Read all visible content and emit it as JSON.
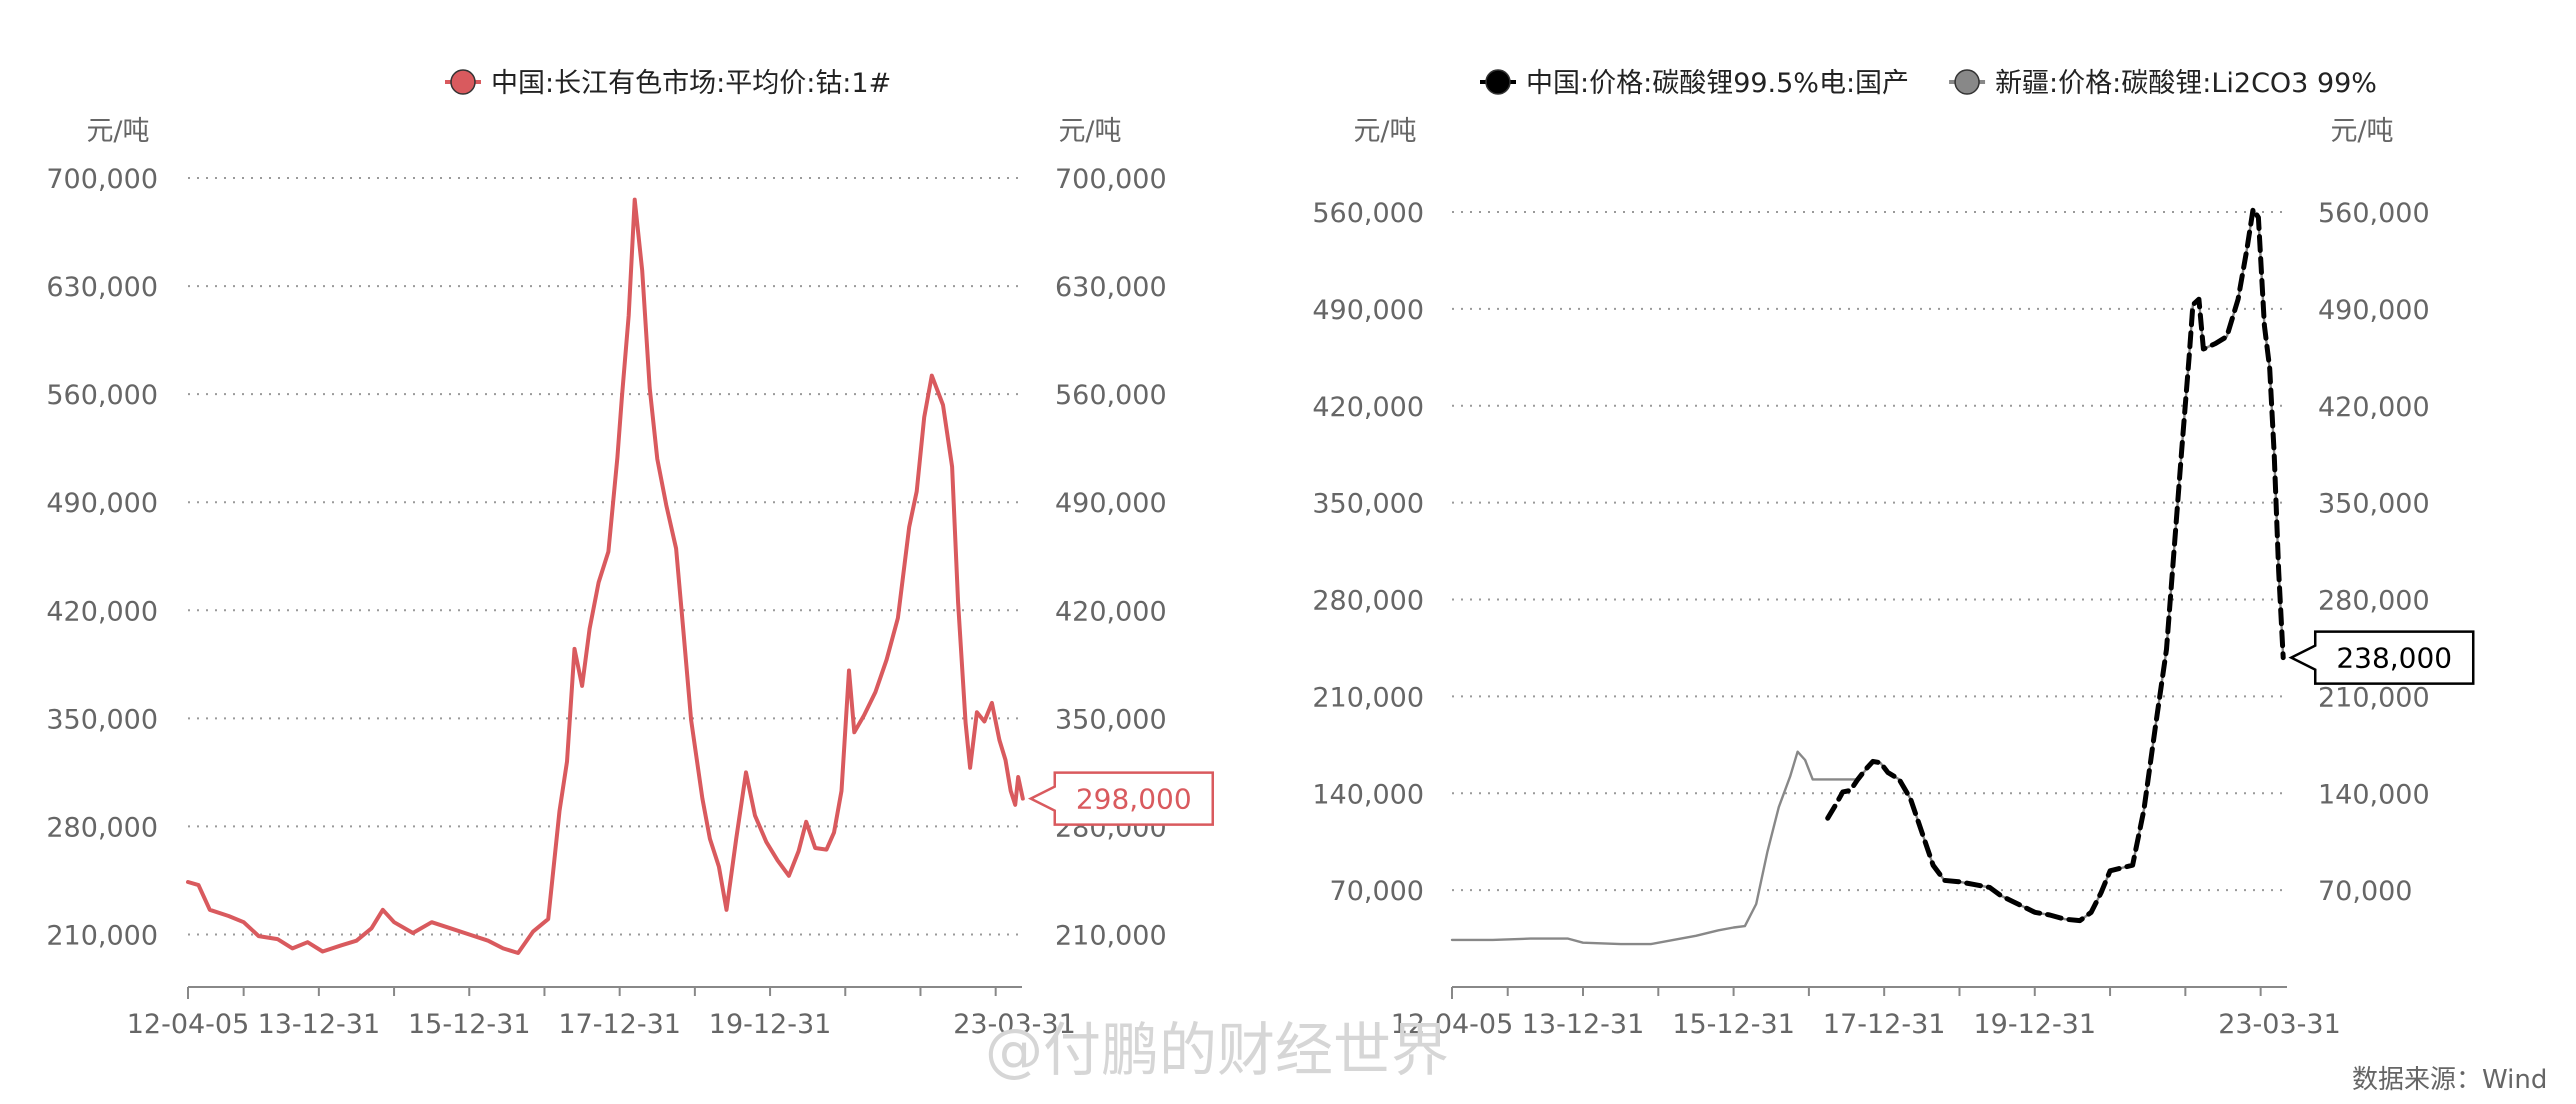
{
  "colors": {
    "cobalt": "#d95a5e",
    "lithium_china": "#000000",
    "lithium_xinjiang": "#888888",
    "axis_text": "#666666",
    "grid": "#9a9a9a"
  },
  "footer": {
    "source": "数据来源：Wind",
    "watermark": "@付鹏的财经世界"
  },
  "chart_data": [
    {
      "type": "line",
      "series": [
        {
          "name": "中国:长江有色市场:平均价:钴:1#",
          "color": "#d95a5e",
          "marker": "circle",
          "points": [
            [
              2012.26,
              244000
            ],
            [
              2012.4,
              242000
            ],
            [
              2012.55,
              226000
            ],
            [
              2012.8,
              222000
            ],
            [
              2013.0,
              218000
            ],
            [
              2013.2,
              209000
            ],
            [
              2013.45,
              207000
            ],
            [
              2013.65,
              201000
            ],
            [
              2013.85,
              205000
            ],
            [
              2014.05,
              199000
            ],
            [
              2014.3,
              203000
            ],
            [
              2014.5,
              206000
            ],
            [
              2014.7,
              214000
            ],
            [
              2014.85,
              226000
            ],
            [
              2015.0,
              218000
            ],
            [
              2015.25,
              211000
            ],
            [
              2015.5,
              218000
            ],
            [
              2015.75,
              214000
            ],
            [
              2016.0,
              210000
            ],
            [
              2016.25,
              206000
            ],
            [
              2016.45,
              201000
            ],
            [
              2016.65,
              198000
            ],
            [
              2016.85,
              212000
            ],
            [
              2017.05,
              220000
            ],
            [
              2017.2,
              290000
            ],
            [
              2017.3,
              322000
            ],
            [
              2017.4,
              395000
            ],
            [
              2017.5,
              371000
            ],
            [
              2017.6,
              408000
            ],
            [
              2017.72,
              438000
            ],
            [
              2017.85,
              458000
            ],
            [
              2017.97,
              519000
            ],
            [
              2018.03,
              558000
            ],
            [
              2018.12,
              611000
            ],
            [
              2018.2,
              686000
            ],
            [
              2018.3,
              640000
            ],
            [
              2018.4,
              564000
            ],
            [
              2018.5,
              518000
            ],
            [
              2018.62,
              488000
            ],
            [
              2018.75,
              460000
            ],
            [
              2018.85,
              405000
            ],
            [
              2018.95,
              349000
            ],
            [
              2019.1,
              298000
            ],
            [
              2019.2,
              272000
            ],
            [
              2019.32,
              254000
            ],
            [
              2019.42,
              226000
            ],
            [
              2019.55,
              272000
            ],
            [
              2019.68,
              315000
            ],
            [
              2019.8,
              287000
            ],
            [
              2019.95,
              270000
            ],
            [
              2020.1,
              258000
            ],
            [
              2020.25,
              248000
            ],
            [
              2020.38,
              264000
            ],
            [
              2020.48,
              283000
            ],
            [
              2020.6,
              266000
            ],
            [
              2020.75,
              265000
            ],
            [
              2020.85,
              276000
            ],
            [
              2020.95,
              303000
            ],
            [
              2021.05,
              381000
            ],
            [
              2021.12,
              341000
            ],
            [
              2021.25,
              352000
            ],
            [
              2021.4,
              367000
            ],
            [
              2021.55,
              388000
            ],
            [
              2021.7,
              415000
            ],
            [
              2021.85,
              474000
            ],
            [
              2021.95,
              497000
            ],
            [
              2022.05,
              545000
            ],
            [
              2022.15,
              572000
            ],
            [
              2022.3,
              553000
            ],
            [
              2022.42,
              513000
            ],
            [
              2022.5,
              425000
            ],
            [
              2022.6,
              347000
            ],
            [
              2022.66,
              318000
            ],
            [
              2022.75,
              354000
            ],
            [
              2022.85,
              348000
            ],
            [
              2022.95,
              360000
            ],
            [
              2023.05,
              336000
            ],
            [
              2023.13,
              323000
            ],
            [
              2023.2,
              303000
            ],
            [
              2023.26,
              294000
            ],
            [
              2023.3,
              312000
            ],
            [
              2023.36,
              298000
            ]
          ],
          "last_label": "298,000"
        }
      ],
      "title": "",
      "ylabel_left": "元/吨",
      "ylabel_right": "元/吨",
      "y_ticks": [
        "700,000",
        "630,000",
        "560,000",
        "490,000",
        "420,000",
        "350,000",
        "280,000",
        "210,000"
      ],
      "y_tick_values": [
        700000,
        630000,
        560000,
        490000,
        420000,
        350000,
        280000,
        210000
      ],
      "ylim": [
        176000,
        700000
      ],
      "xlim": [
        2012.26,
        2023.35
      ],
      "x_ticks": [
        {
          "label": "12-04-05",
          "value": 2012.26
        },
        {
          "label": "13-12-31",
          "value": 2014.0
        },
        {
          "label": "15-12-31",
          "value": 2016.0
        },
        {
          "label": "17-12-31",
          "value": 2018.0
        },
        {
          "label": "19-12-31",
          "value": 2020.0
        },
        {
          "label": "23-03-31",
          "value": 2023.25
        }
      ],
      "grid": true,
      "legend": "top-center"
    },
    {
      "type": "line",
      "series": [
        {
          "name": "中国:价格:碳酸锂99.5%电:国产",
          "color": "#000000",
          "marker": "circle",
          "points": [
            [
              2017.25,
              122000
            ],
            [
              2017.35,
              131000
            ],
            [
              2017.45,
              141000
            ],
            [
              2017.55,
              142000
            ],
            [
              2017.65,
              150000
            ],
            [
              2017.75,
              157000
            ],
            [
              2017.85,
              163000
            ],
            [
              2017.95,
              162000
            ],
            [
              2018.05,
              155000
            ],
            [
              2018.2,
              150000
            ],
            [
              2018.35,
              136000
            ],
            [
              2018.5,
              112000
            ],
            [
              2018.65,
              88000
            ],
            [
              2018.8,
              77000
            ],
            [
              2019.0,
              76000
            ],
            [
              2019.2,
              74000
            ],
            [
              2019.4,
              72000
            ],
            [
              2019.55,
              66000
            ],
            [
              2019.7,
              62000
            ],
            [
              2019.85,
              58000
            ],
            [
              2020.0,
              54000
            ],
            [
              2020.2,
              52000
            ],
            [
              2020.4,
              49000
            ],
            [
              2020.6,
              48000
            ],
            [
              2020.75,
              54000
            ],
            [
              2020.88,
              68000
            ],
            [
              2021.0,
              84000
            ],
            [
              2021.15,
              86000
            ],
            [
              2021.3,
              88000
            ],
            [
              2021.45,
              128000
            ],
            [
              2021.6,
              187000
            ],
            [
              2021.75,
              244000
            ],
            [
              2021.85,
              316000
            ],
            [
              2021.95,
              387000
            ],
            [
              2022.05,
              455000
            ],
            [
              2022.1,
              493000
            ],
            [
              2022.18,
              497000
            ],
            [
              2022.24,
              461000
            ],
            [
              2022.4,
              465000
            ],
            [
              2022.55,
              470000
            ],
            [
              2022.7,
              497000
            ],
            [
              2022.82,
              534000
            ],
            [
              2022.9,
              562000
            ],
            [
              2022.97,
              556000
            ],
            [
              2023.05,
              478000
            ],
            [
              2023.12,
              447000
            ],
            [
              2023.18,
              385000
            ],
            [
              2023.24,
              300000
            ],
            [
              2023.3,
              238000
            ]
          ]
        },
        {
          "name": "新疆:价格:碳酸锂:Li2CO3 99%",
          "color": "#888888",
          "marker": "circle",
          "points": [
            [
              2012.26,
              34000
            ],
            [
              2012.8,
              34000
            ],
            [
              2013.3,
              35000
            ],
            [
              2013.8,
              35000
            ],
            [
              2014.0,
              32000
            ],
            [
              2014.5,
              31000
            ],
            [
              2014.9,
              31000
            ],
            [
              2015.2,
              34000
            ],
            [
              2015.5,
              37000
            ],
            [
              2015.8,
              41000
            ],
            [
              2016.0,
              43000
            ],
            [
              2016.15,
              44000
            ],
            [
              2016.3,
              60000
            ],
            [
              2016.45,
              98000
            ],
            [
              2016.6,
              130000
            ],
            [
              2016.75,
              152000
            ],
            [
              2016.85,
              170000
            ],
            [
              2016.95,
              164000
            ],
            [
              2017.05,
              150000
            ],
            [
              2017.25,
              150000
            ],
            [
              2017.45,
              150000
            ],
            [
              2017.65,
              150000
            ],
            [
              2017.85,
              163000
            ],
            [
              2017.95,
              162000
            ],
            [
              2018.05,
              155000
            ],
            [
              2018.2,
              150000
            ],
            [
              2018.35,
              136000
            ],
            [
              2018.5,
              112000
            ],
            [
              2018.65,
              88000
            ],
            [
              2018.8,
              77000
            ],
            [
              2019.0,
              76000
            ],
            [
              2019.2,
              74000
            ],
            [
              2019.4,
              72000
            ],
            [
              2019.55,
              66000
            ],
            [
              2019.7,
              62000
            ],
            [
              2019.85,
              58000
            ],
            [
              2020.0,
              54000
            ],
            [
              2020.2,
              52000
            ],
            [
              2020.4,
              49000
            ],
            [
              2020.6,
              48000
            ],
            [
              2020.75,
              54000
            ],
            [
              2020.88,
              68000
            ],
            [
              2021.0,
              84000
            ],
            [
              2021.15,
              86000
            ],
            [
              2021.3,
              88000
            ],
            [
              2021.45,
              128000
            ],
            [
              2021.6,
              187000
            ],
            [
              2021.75,
              244000
            ],
            [
              2021.85,
              316000
            ],
            [
              2021.95,
              387000
            ],
            [
              2022.05,
              455000
            ],
            [
              2022.1,
              493000
            ],
            [
              2022.18,
              497000
            ],
            [
              2022.24,
              461000
            ],
            [
              2022.4,
              465000
            ],
            [
              2022.55,
              470000
            ],
            [
              2022.7,
              497000
            ],
            [
              2022.82,
              534000
            ],
            [
              2022.9,
              562000
            ],
            [
              2022.97,
              556000
            ],
            [
              2023.05,
              478000
            ],
            [
              2023.12,
              447000
            ],
            [
              2023.18,
              385000
            ],
            [
              2023.24,
              300000
            ],
            [
              2023.3,
              238000
            ]
          ],
          "last_label": "238,000"
        }
      ],
      "title": "",
      "ylabel_left": "元/吨",
      "ylabel_right": "元/吨",
      "y_ticks": [
        "560,000",
        "490,000",
        "420,000",
        "350,000",
        "280,000",
        "210,000",
        "140,000",
        "70,000"
      ],
      "y_tick_values": [
        560000,
        490000,
        420000,
        350000,
        280000,
        210000,
        140000,
        70000
      ],
      "ylim": [
        0,
        560000
      ],
      "xlim": [
        2012.26,
        2023.35
      ],
      "x_ticks": [
        {
          "label": "12-04-05",
          "value": 2012.26
        },
        {
          "label": "13-12-31",
          "value": 2014.0
        },
        {
          "label": "15-12-31",
          "value": 2016.0
        },
        {
          "label": "17-12-31",
          "value": 2018.0
        },
        {
          "label": "19-12-31",
          "value": 2020.0
        },
        {
          "label": "23-03-31",
          "value": 2023.25
        }
      ],
      "grid": true,
      "legend": "top-center"
    }
  ]
}
